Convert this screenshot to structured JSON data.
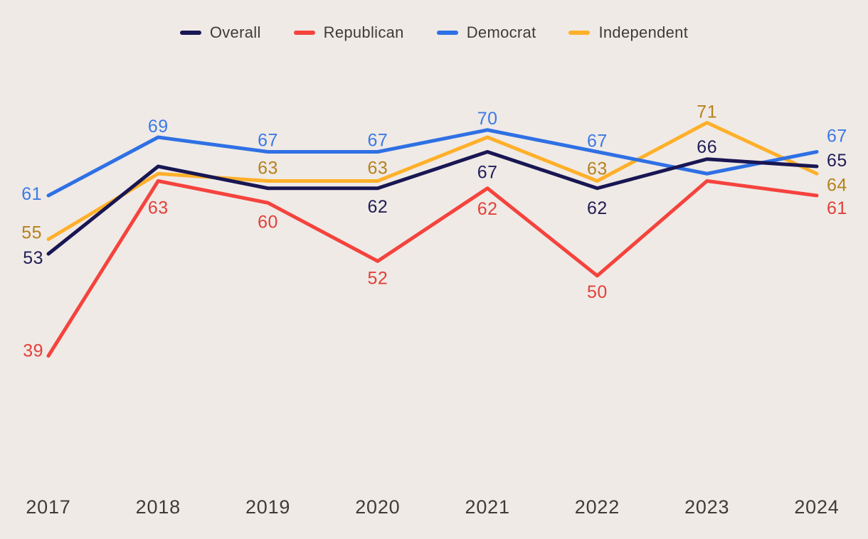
{
  "background_color": "#efeae6",
  "legend": {
    "position": "top-center",
    "items": [
      {
        "label": "Overall",
        "color": "#191653"
      },
      {
        "label": "Republican",
        "color": "#f5433d"
      },
      {
        "label": "Democrat",
        "color": "#2f70e4"
      },
      {
        "label": "Independent",
        "color": "#ffb02a"
      }
    ]
  },
  "chart_data": {
    "type": "line",
    "title": "",
    "xlabel": "",
    "ylabel": "",
    "x": [
      "2017",
      "2018",
      "2019",
      "2020",
      "2021",
      "2022",
      "2023",
      "2024"
    ],
    "ylim": [
      35,
      75
    ],
    "grid": false,
    "legend_position": "top",
    "series": [
      {
        "name": "Overall",
        "color": "#191653",
        "label_color": "#201d57",
        "values": [
          53,
          65,
          62,
          62,
          67,
          62,
          66,
          65
        ],
        "point_labels": [
          {
            "t": "53",
            "anchor": "end",
            "dx": -7,
            "dy": 6
          },
          null,
          null,
          {
            "t": "62",
            "anchor": "middle",
            "dx": 0,
            "dy": 26
          },
          {
            "t": "67",
            "anchor": "middle",
            "dx": 0,
            "dy": 29
          },
          {
            "t": "62",
            "anchor": "middle",
            "dx": 0,
            "dy": 28
          },
          {
            "t": "66",
            "anchor": "middle",
            "dx": 0,
            "dy": -17
          },
          {
            "t": "65",
            "anchor": "start",
            "dx": 14,
            "dy": -8
          }
        ]
      },
      {
        "name": "Republican",
        "color": "#f5433d",
        "label_color": "#e2403a",
        "values": [
          39,
          63,
          60,
          52,
          62,
          50,
          63,
          61
        ],
        "point_labels": [
          {
            "t": "39",
            "anchor": "end",
            "dx": -7,
            "dy": -7
          },
          {
            "t": "63",
            "anchor": "middle",
            "dx": 0,
            "dy": 38
          },
          {
            "t": "60",
            "anchor": "middle",
            "dx": 0,
            "dy": 27
          },
          {
            "t": "52",
            "anchor": "middle",
            "dx": 0,
            "dy": 24
          },
          {
            "t": "62",
            "anchor": "middle",
            "dx": 0,
            "dy": 29
          },
          {
            "t": "50",
            "anchor": "middle",
            "dx": 0,
            "dy": 23
          },
          null,
          {
            "t": "61",
            "anchor": "start",
            "dx": 14,
            "dy": 18
          }
        ]
      },
      {
        "name": "Democrat",
        "color": "#2f70e4",
        "label_color": "#3c79e6",
        "values": [
          61,
          69,
          67,
          67,
          70,
          67,
          64,
          67
        ],
        "point_labels": [
          {
            "t": "61",
            "anchor": "end",
            "dx": -9,
            "dy": -2
          },
          {
            "t": "69",
            "anchor": "middle",
            "dx": 0,
            "dy": -15
          },
          {
            "t": "67",
            "anchor": "middle",
            "dx": 0,
            "dy": -16
          },
          {
            "t": "67",
            "anchor": "middle",
            "dx": 0,
            "dy": -16
          },
          {
            "t": "70",
            "anchor": "middle",
            "dx": 0,
            "dy": -16
          },
          {
            "t": "67",
            "anchor": "middle",
            "dx": 0,
            "dy": -15
          },
          null,
          {
            "t": "67",
            "anchor": "start",
            "dx": 14,
            "dy": -22
          }
        ]
      },
      {
        "name": "Independent",
        "color": "#ffb02a",
        "label_color": "#b5821c",
        "values": [
          55,
          64,
          63,
          63,
          69,
          63,
          71,
          64
        ],
        "point_labels": [
          {
            "t": "55",
            "anchor": "end",
            "dx": -9,
            "dy": -9
          },
          null,
          {
            "t": "63",
            "anchor": "middle",
            "dx": 0,
            "dy": -18
          },
          {
            "t": "63",
            "anchor": "middle",
            "dx": 0,
            "dy": -18
          },
          null,
          {
            "t": "63",
            "anchor": "middle",
            "dx": 0,
            "dy": -17
          },
          {
            "t": "71",
            "anchor": "middle",
            "dx": 0,
            "dy": -15
          },
          {
            "t": "64",
            "anchor": "start",
            "dx": 14,
            "dy": 16
          }
        ]
      }
    ]
  }
}
